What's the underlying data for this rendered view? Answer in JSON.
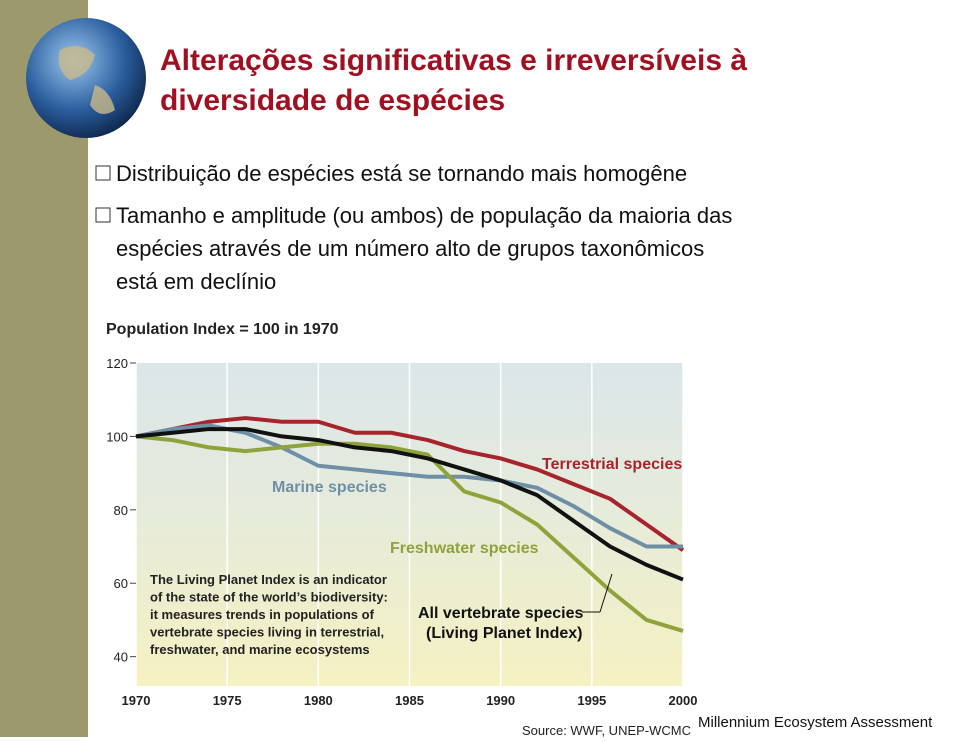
{
  "slide": {
    "title": [
      "Alterações significativas e irreversíveis à",
      "diversidade de espécies"
    ],
    "bullets": [
      [
        "Distribuição de espécies está se tornando mais homogêne"
      ],
      [
        "Tamanho e amplitude (ou ambos) de população da maioria das",
        "espécies através de um número alto de grupos taxonômicos",
        "está em declínio"
      ]
    ],
    "source": "Source: WWF, UNEP-WCMC",
    "footer": "Millennium Ecosystem Assessment"
  },
  "chart_data": {
    "type": "line",
    "title": "Population Index = 100 in 1970",
    "x": [
      1970,
      1972,
      1974,
      1976,
      1978,
      1980,
      1982,
      1984,
      1986,
      1988,
      1990,
      1992,
      1994,
      1996,
      1998,
      2000
    ],
    "series": [
      {
        "name": "Terrestrial species",
        "color": "#a8242c",
        "values": [
          100,
          102,
          104,
          105,
          104,
          104,
          101,
          101,
          99,
          96,
          94,
          91,
          87,
          83,
          76,
          69
        ]
      },
      {
        "name": "Marine species",
        "color": "#6f8fa6",
        "values": [
          100,
          102,
          103,
          101,
          97,
          92,
          91,
          90,
          89,
          89,
          88,
          86,
          81,
          75,
          70,
          70
        ]
      },
      {
        "name": "Freshwater species",
        "color": "#8fa33a",
        "values": [
          100,
          99,
          97,
          96,
          97,
          98,
          98,
          97,
          95,
          85,
          82,
          76,
          67,
          58,
          50,
          47
        ]
      },
      {
        "name": "All vertebrate species",
        "color": "#111111",
        "values": [
          100,
          101,
          102,
          102,
          100,
          99,
          97,
          96,
          94,
          91,
          88,
          84,
          77,
          70,
          65,
          61
        ]
      }
    ],
    "annotations": [
      "(Living Planet Index)",
      "The Living Planet Index is an indicator",
      "of the state of the world’s biodiversity:",
      "it measures trends in populations of",
      "vertebrate species living in terrestrial,",
      "freshwater, and marine ecosystems"
    ],
    "xlim": [
      1970,
      2000
    ],
    "xticks": [
      1970,
      1975,
      1980,
      1985,
      1990,
      1995,
      2000
    ],
    "ylim": [
      32,
      120
    ],
    "yticks": [
      40,
      60,
      80,
      100,
      120
    ],
    "grid": true
  }
}
